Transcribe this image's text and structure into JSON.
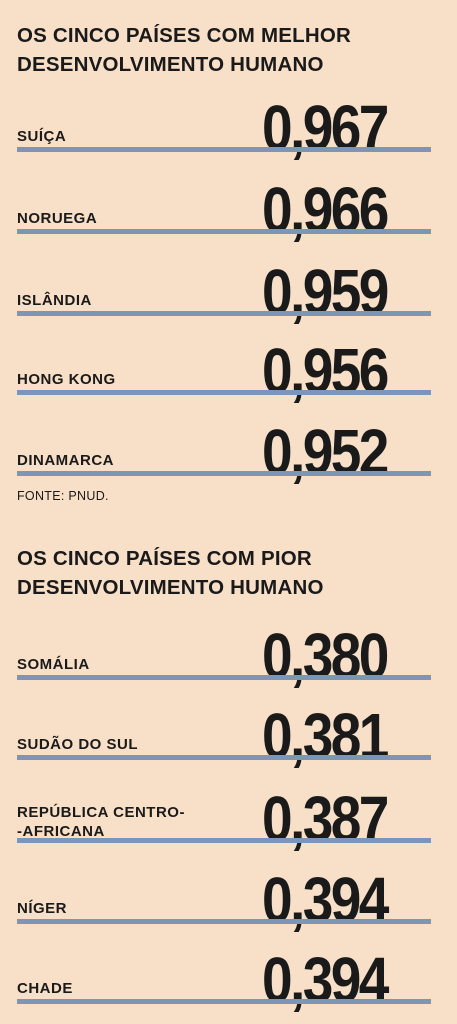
{
  "source": "FONTE: PNUD.",
  "chart_data": [
    {
      "type": "bar",
      "title_lines": [
        "OS CINCO PAÍSES COM MELHOR",
        "DESENVOLVIMENTO HUMANO"
      ],
      "categories": [
        [
          "SUÍÇA"
        ],
        [
          "NORUEGA"
        ],
        [
          "ISLÂNDIA"
        ],
        [
          "HONG KONG"
        ],
        [
          "DINAMARCA"
        ]
      ],
      "values": [
        "0,967",
        "0,966",
        "0,959",
        "0,956",
        "0,952"
      ]
    },
    {
      "type": "bar",
      "title_lines": [
        "OS CINCO PAÍSES COM PIOR",
        "DESENVOLVIMENTO HUMANO"
      ],
      "categories": [
        [
          "SOMÁLIA"
        ],
        [
          "SUDÃO DO SUL"
        ],
        [
          "REPÚBLICA CENTRO-",
          "-AFRICANA"
        ],
        [
          "NÍGER"
        ],
        [
          "CHADE"
        ]
      ],
      "values": [
        "0,380",
        "0,381",
        "0,387",
        "0,394",
        "0,394"
      ]
    }
  ]
}
